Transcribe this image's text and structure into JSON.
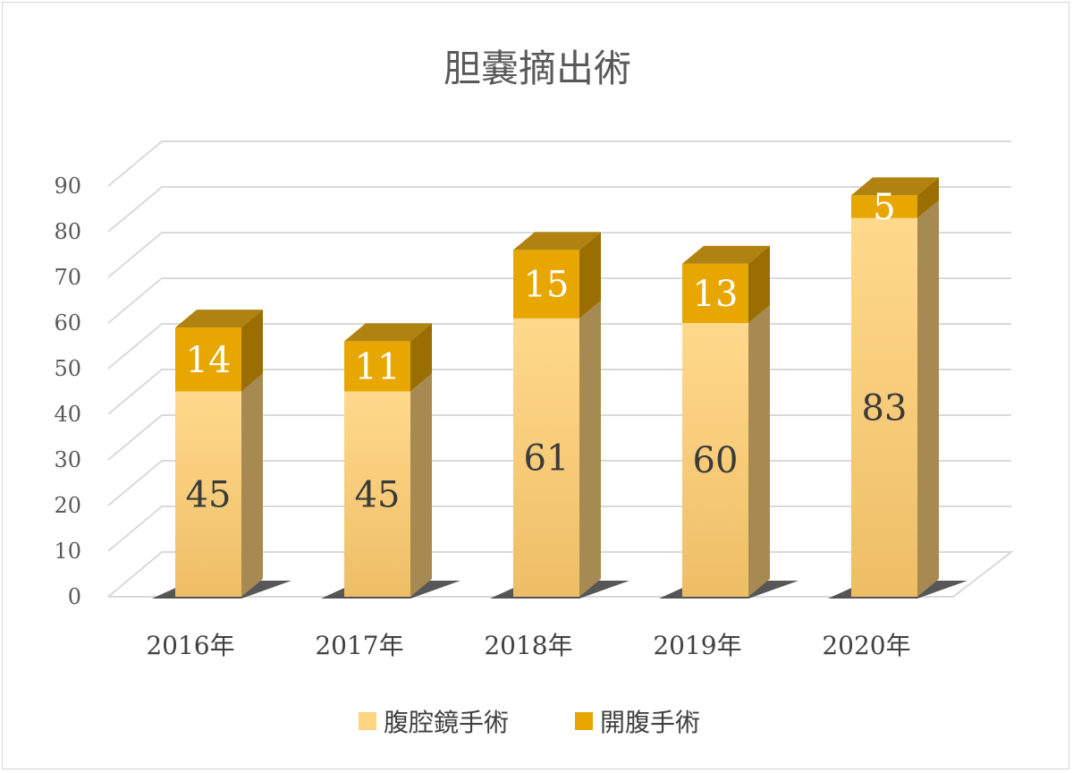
{
  "chart_data": {
    "type": "bar",
    "stacked": true,
    "three_d": true,
    "title": "胆嚢摘出術",
    "categories": [
      "2016年",
      "2017年",
      "2018年",
      "2019年",
      "2020年"
    ],
    "series": [
      {
        "name": "腹腔鏡手術",
        "values": [
          45,
          45,
          61,
          60,
          83
        ],
        "color": "#FFD580"
      },
      {
        "name": "開腹手術",
        "values": [
          14,
          11,
          15,
          13,
          5
        ],
        "color": "#E8A700"
      }
    ],
    "y_ticks": [
      "0",
      "10",
      "20",
      "30",
      "40",
      "50",
      "60",
      "70",
      "80",
      "90"
    ],
    "ylim": [
      0,
      90
    ],
    "grid": true,
    "legend_position": "bottom"
  }
}
